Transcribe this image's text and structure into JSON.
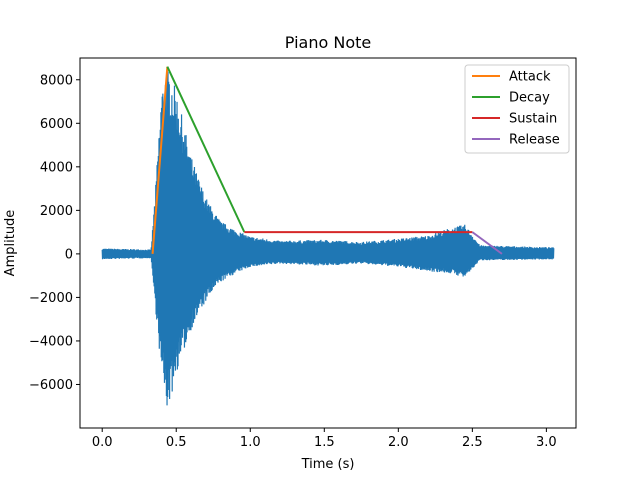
{
  "chart_data": {
    "type": "line",
    "title": "Piano Note",
    "xlabel": "Time (s)",
    "ylabel": "Amplitude",
    "xlim": [
      -0.15,
      3.2
    ],
    "ylim": [
      -8000,
      9000
    ],
    "grid": false,
    "legend_position": "top-right",
    "x_ticks": [
      {
        "value": 0.0,
        "label": "0.0"
      },
      {
        "value": 0.5,
        "label": "0.5"
      },
      {
        "value": 1.0,
        "label": "1.0"
      },
      {
        "value": 1.5,
        "label": "1.5"
      },
      {
        "value": 2.0,
        "label": "2.0"
      },
      {
        "value": 2.5,
        "label": "2.5"
      },
      {
        "value": 3.0,
        "label": "3.0"
      }
    ],
    "y_ticks": [
      {
        "value": -6000,
        "label": "−6000"
      },
      {
        "value": -4000,
        "label": "−4000"
      },
      {
        "value": -2000,
        "label": "−2000"
      },
      {
        "value": 0,
        "label": "0"
      },
      {
        "value": 2000,
        "label": "2000"
      },
      {
        "value": 4000,
        "label": "4000"
      },
      {
        "value": 6000,
        "label": "6000"
      },
      {
        "value": 8000,
        "label": "8000"
      }
    ],
    "waveform": {
      "color": "#1f77b4",
      "x_range": [
        0.0,
        3.05
      ],
      "upper_envelope": [
        [
          0.0,
          250
        ],
        [
          0.33,
          200
        ],
        [
          0.36,
          3000
        ],
        [
          0.4,
          7500
        ],
        [
          0.43,
          8600
        ],
        [
          0.46,
          8300
        ],
        [
          0.5,
          7500
        ],
        [
          0.55,
          6000
        ],
        [
          0.6,
          4500
        ],
        [
          0.65,
          3500
        ],
        [
          0.7,
          2600
        ],
        [
          0.75,
          2000
        ],
        [
          0.8,
          1500
        ],
        [
          0.9,
          1100
        ],
        [
          1.0,
          800
        ],
        [
          1.2,
          600
        ],
        [
          1.5,
          650
        ],
        [
          1.75,
          550
        ],
        [
          2.0,
          700
        ],
        [
          2.2,
          850
        ],
        [
          2.35,
          1200
        ],
        [
          2.45,
          1350
        ],
        [
          2.5,
          900
        ],
        [
          2.55,
          400
        ],
        [
          3.05,
          300
        ]
      ],
      "lower_envelope": [
        [
          0.0,
          -250
        ],
        [
          0.33,
          -200
        ],
        [
          0.36,
          -2500
        ],
        [
          0.4,
          -5500
        ],
        [
          0.44,
          -7200
        ],
        [
          0.47,
          -6500
        ],
        [
          0.5,
          -5500
        ],
        [
          0.55,
          -4500
        ],
        [
          0.6,
          -3500
        ],
        [
          0.65,
          -2800
        ],
        [
          0.7,
          -2200
        ],
        [
          0.75,
          -1700
        ],
        [
          0.8,
          -1300
        ],
        [
          0.9,
          -900
        ],
        [
          1.0,
          -600
        ],
        [
          1.2,
          -450
        ],
        [
          1.5,
          -550
        ],
        [
          1.75,
          -450
        ],
        [
          2.0,
          -600
        ],
        [
          2.2,
          -800
        ],
        [
          2.35,
          -900
        ],
        [
          2.45,
          -1100
        ],
        [
          2.5,
          -700
        ],
        [
          2.55,
          -300
        ],
        [
          3.05,
          -250
        ]
      ]
    },
    "series": [
      {
        "name": "Attack",
        "color": "#ff7f0e",
        "x": [
          0.34,
          0.44
        ],
        "y": [
          0,
          8600
        ]
      },
      {
        "name": "Decay",
        "color": "#2ca02c",
        "x": [
          0.44,
          0.96
        ],
        "y": [
          8600,
          1000
        ]
      },
      {
        "name": "Sustain",
        "color": "#d62728",
        "x": [
          0.96,
          2.5
        ],
        "y": [
          1000,
          1000
        ]
      },
      {
        "name": "Release",
        "color": "#9467bd",
        "x": [
          2.5,
          2.7
        ],
        "y": [
          1000,
          0
        ]
      }
    ]
  }
}
